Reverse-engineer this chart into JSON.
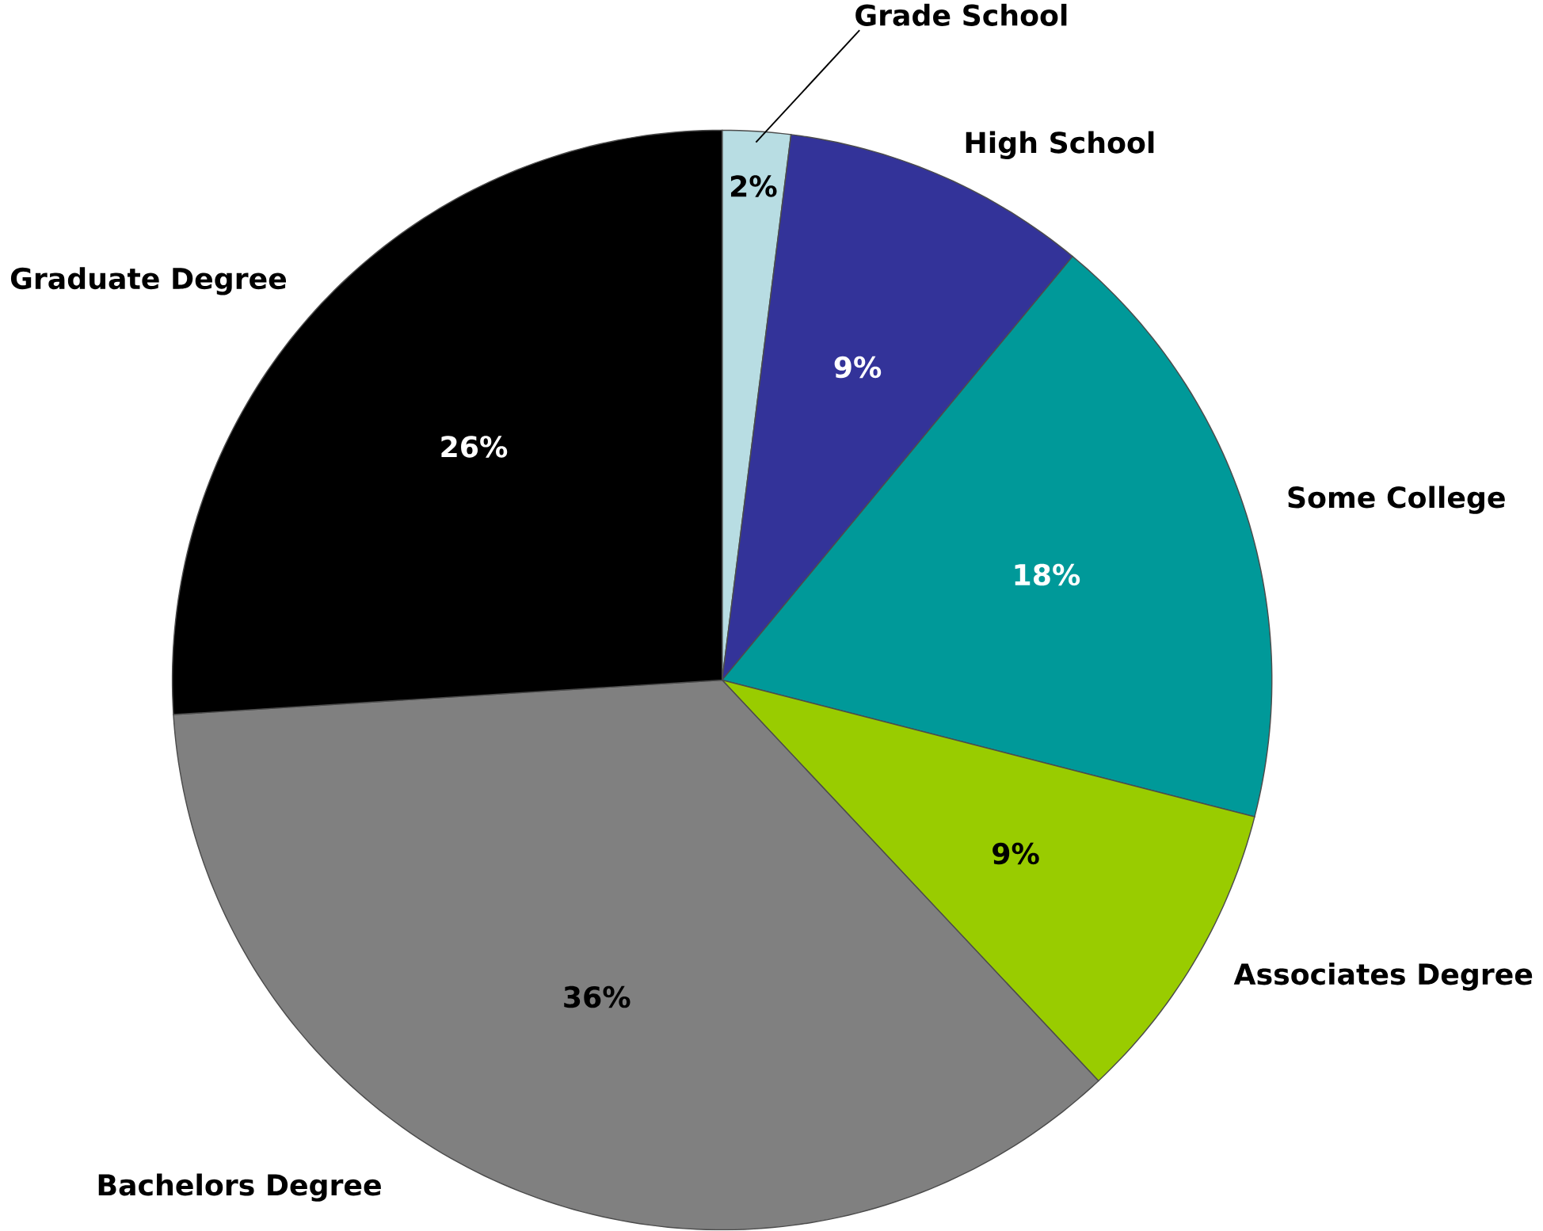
{
  "chart_data": {
    "type": "pie",
    "categories": [
      "Grade School",
      "High School",
      "Some College",
      "Associates Degree",
      "Bachelors Degree",
      "Graduate Degree"
    ],
    "values": [
      2,
      9,
      18,
      9,
      36,
      26
    ],
    "value_labels": [
      "2%",
      "9%",
      "18%",
      "9%",
      "36%",
      "26%"
    ],
    "colors": [
      "#b8dde3",
      "#333399",
      "#009999",
      "#99cc00",
      "#808080",
      "#000000"
    ]
  }
}
